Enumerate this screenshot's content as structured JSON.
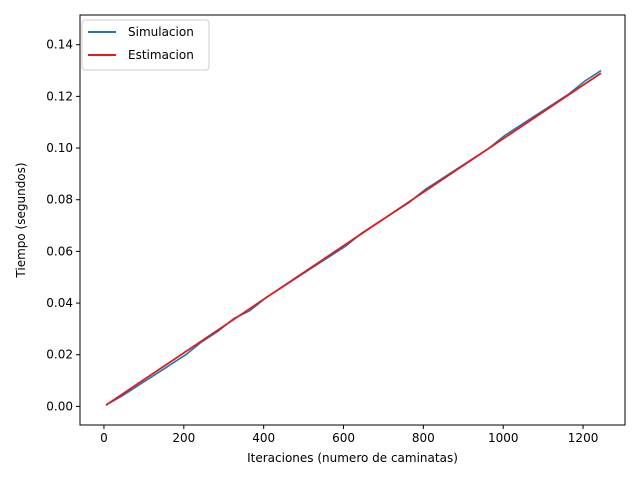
{
  "chart_data": {
    "type": "line",
    "xlabel": "Iteraciones (numero de caminatas)",
    "ylabel": "Tiempo (segundos)",
    "xlim": [
      -60,
      1305
    ],
    "ylim": [
      -0.0072,
      0.1515
    ],
    "x_ticks": [
      0,
      200,
      400,
      600,
      800,
      1000,
      1200
    ],
    "x_tick_labels": [
      "0",
      "200",
      "400",
      "600",
      "800",
      "1000",
      "1200"
    ],
    "y_ticks": [
      0.0,
      0.02,
      0.04,
      0.06,
      0.08,
      0.1,
      0.12,
      0.14
    ],
    "y_tick_labels": [
      "0.00",
      "0.02",
      "0.04",
      "0.06",
      "0.08",
      "0.10",
      "0.12",
      "0.14"
    ],
    "grid": false,
    "legend_position": "top-left",
    "colors": {
      "simulacion": "#1f77b4",
      "estimacion": "#e41a1c"
    },
    "series": [
      {
        "name": "Simulacion",
        "x": [
          5,
          45,
          85,
          125,
          165,
          205,
          245,
          285,
          325,
          365,
          405,
          445,
          485,
          525,
          565,
          605,
          645,
          685,
          725,
          765,
          805,
          845,
          885,
          925,
          965,
          1005,
          1045,
          1085,
          1125,
          1165,
          1205,
          1245
        ],
        "y": [
          0.0005,
          0.004,
          0.008,
          0.012,
          0.016,
          0.02,
          0.025,
          0.029,
          0.034,
          0.037,
          0.042,
          0.046,
          0.05,
          0.054,
          0.058,
          0.062,
          0.067,
          0.071,
          0.075,
          0.079,
          0.084,
          0.088,
          0.092,
          0.096,
          0.1,
          0.105,
          0.109,
          0.113,
          0.117,
          0.121,
          0.126,
          0.13
        ]
      },
      {
        "name": "Estimacion",
        "x": [
          5,
          1245
        ],
        "y": [
          0.0005,
          0.129
        ]
      }
    ]
  }
}
